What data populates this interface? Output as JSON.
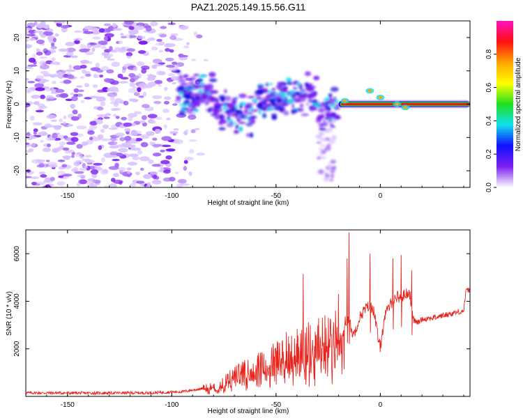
{
  "title": "PAZ1.2025.149.15.56.G11",
  "colors": {
    "snr_line": "#e8231c",
    "frame": "#000000",
    "blob_light": "#d9c2ff",
    "blob_mid": "#a56cf5",
    "blob_dark": "#7a1ff0",
    "blob_blue": "#2010e0",
    "blob_cyan": "#10d8f0",
    "blob_green": "#20d020",
    "line_red": "#ff1010",
    "line_orange": "#ffa500"
  },
  "chart_data": [
    {
      "type": "heatmap",
      "name": "spectrogram",
      "title": "PAZ1.2025.149.15.56.G11",
      "xlabel": "Height of straight line (km)",
      "ylabel": "Frequency (Hz)",
      "xlim": [
        -170,
        43
      ],
      "ylim": [
        -25,
        25
      ],
      "xticks": [
        "-150",
        "-100",
        "-50",
        "0"
      ],
      "xtick_values": [
        -150,
        -100,
        -50,
        0
      ],
      "yticks": [
        "20",
        "10",
        "0",
        "-10",
        "-20"
      ],
      "ytick_values": [
        20,
        10,
        0,
        -10,
        -20
      ],
      "colorbar": {
        "label": "Normalized spectral amplitude",
        "range": [
          0,
          1
        ],
        "ticks": [
          "0.0",
          "0.2",
          "0.4",
          "0.6",
          "0.8"
        ],
        "tick_values": [
          0.0,
          0.2,
          0.4,
          0.6,
          0.8
        ],
        "stops": [
          "#ffffff",
          "#7a1ff0",
          "#1010ff",
          "#10e0f0",
          "#20e020",
          "#ffff00",
          "#ffa500",
          "#ff1010",
          "#ff10c0"
        ]
      },
      "features": [
        {
          "label": "noise",
          "x_range": [
            -170,
            -85
          ],
          "y_range": [
            -25,
            25
          ],
          "amplitude": 0.05
        },
        {
          "label": "scintillation",
          "x_range": [
            -97,
            -20
          ],
          "y_range": [
            -13,
            9
          ],
          "amplitude": 0.25
        },
        {
          "label": "tone",
          "x_range": [
            -20,
            43
          ],
          "frequency": 0,
          "amplitude": 0.9
        }
      ]
    },
    {
      "type": "line",
      "name": "snr",
      "xlabel": "Height of straight line (km)",
      "ylabel": "SNR (10 * v/v)",
      "xlim": [
        -170,
        43
      ],
      "ylim": [
        0,
        7000
      ],
      "xticks": [
        "-150",
        "-100",
        "-50",
        "0"
      ],
      "xtick_values": [
        -150,
        -100,
        -50,
        0
      ],
      "yticks": [
        "2000",
        "4000",
        "6000"
      ],
      "ytick_values": [
        2000,
        4000,
        6000
      ],
      "series": [
        {
          "name": "SNR",
          "x": [
            -170,
            -140,
            -110,
            -95,
            -85,
            -80,
            -75,
            -70,
            -65,
            -60,
            -55,
            -50,
            -45,
            -40,
            -35,
            -30,
            -25,
            -20,
            -18,
            -17,
            -15,
            -13,
            -10,
            -8,
            -5,
            -3,
            -1,
            0,
            2,
            5,
            8,
            10,
            12,
            14,
            16,
            18,
            20,
            25,
            30,
            35,
            40,
            41,
            43
          ],
          "y": [
            150,
            140,
            150,
            200,
            330,
            420,
            580,
            820,
            1000,
            1180,
            1340,
            1500,
            1680,
            1850,
            2000,
            2150,
            2300,
            2450,
            2550,
            3200,
            3200,
            2550,
            3300,
            3600,
            3850,
            3600,
            2400,
            2050,
            3350,
            3900,
            4200,
            4150,
            4300,
            4400,
            3200,
            3100,
            3250,
            3300,
            3400,
            3500,
            3600,
            4400,
            4500
          ]
        }
      ],
      "peaks": [
        {
          "x": -15,
          "y": 6900
        },
        {
          "x": -16,
          "y": 5800
        },
        {
          "x": -37,
          "y": 5150
        },
        {
          "x": -5,
          "y": 6000
        },
        {
          "x": 6,
          "y": 5800
        },
        {
          "x": 10,
          "y": 5950
        },
        {
          "x": 15,
          "y": 5300
        },
        {
          "x": -20,
          "y": 4300
        },
        {
          "x": -25,
          "y": 3300
        },
        {
          "x": -30,
          "y": 3000
        },
        {
          "x": -45,
          "y": 2700
        }
      ]
    }
  ]
}
